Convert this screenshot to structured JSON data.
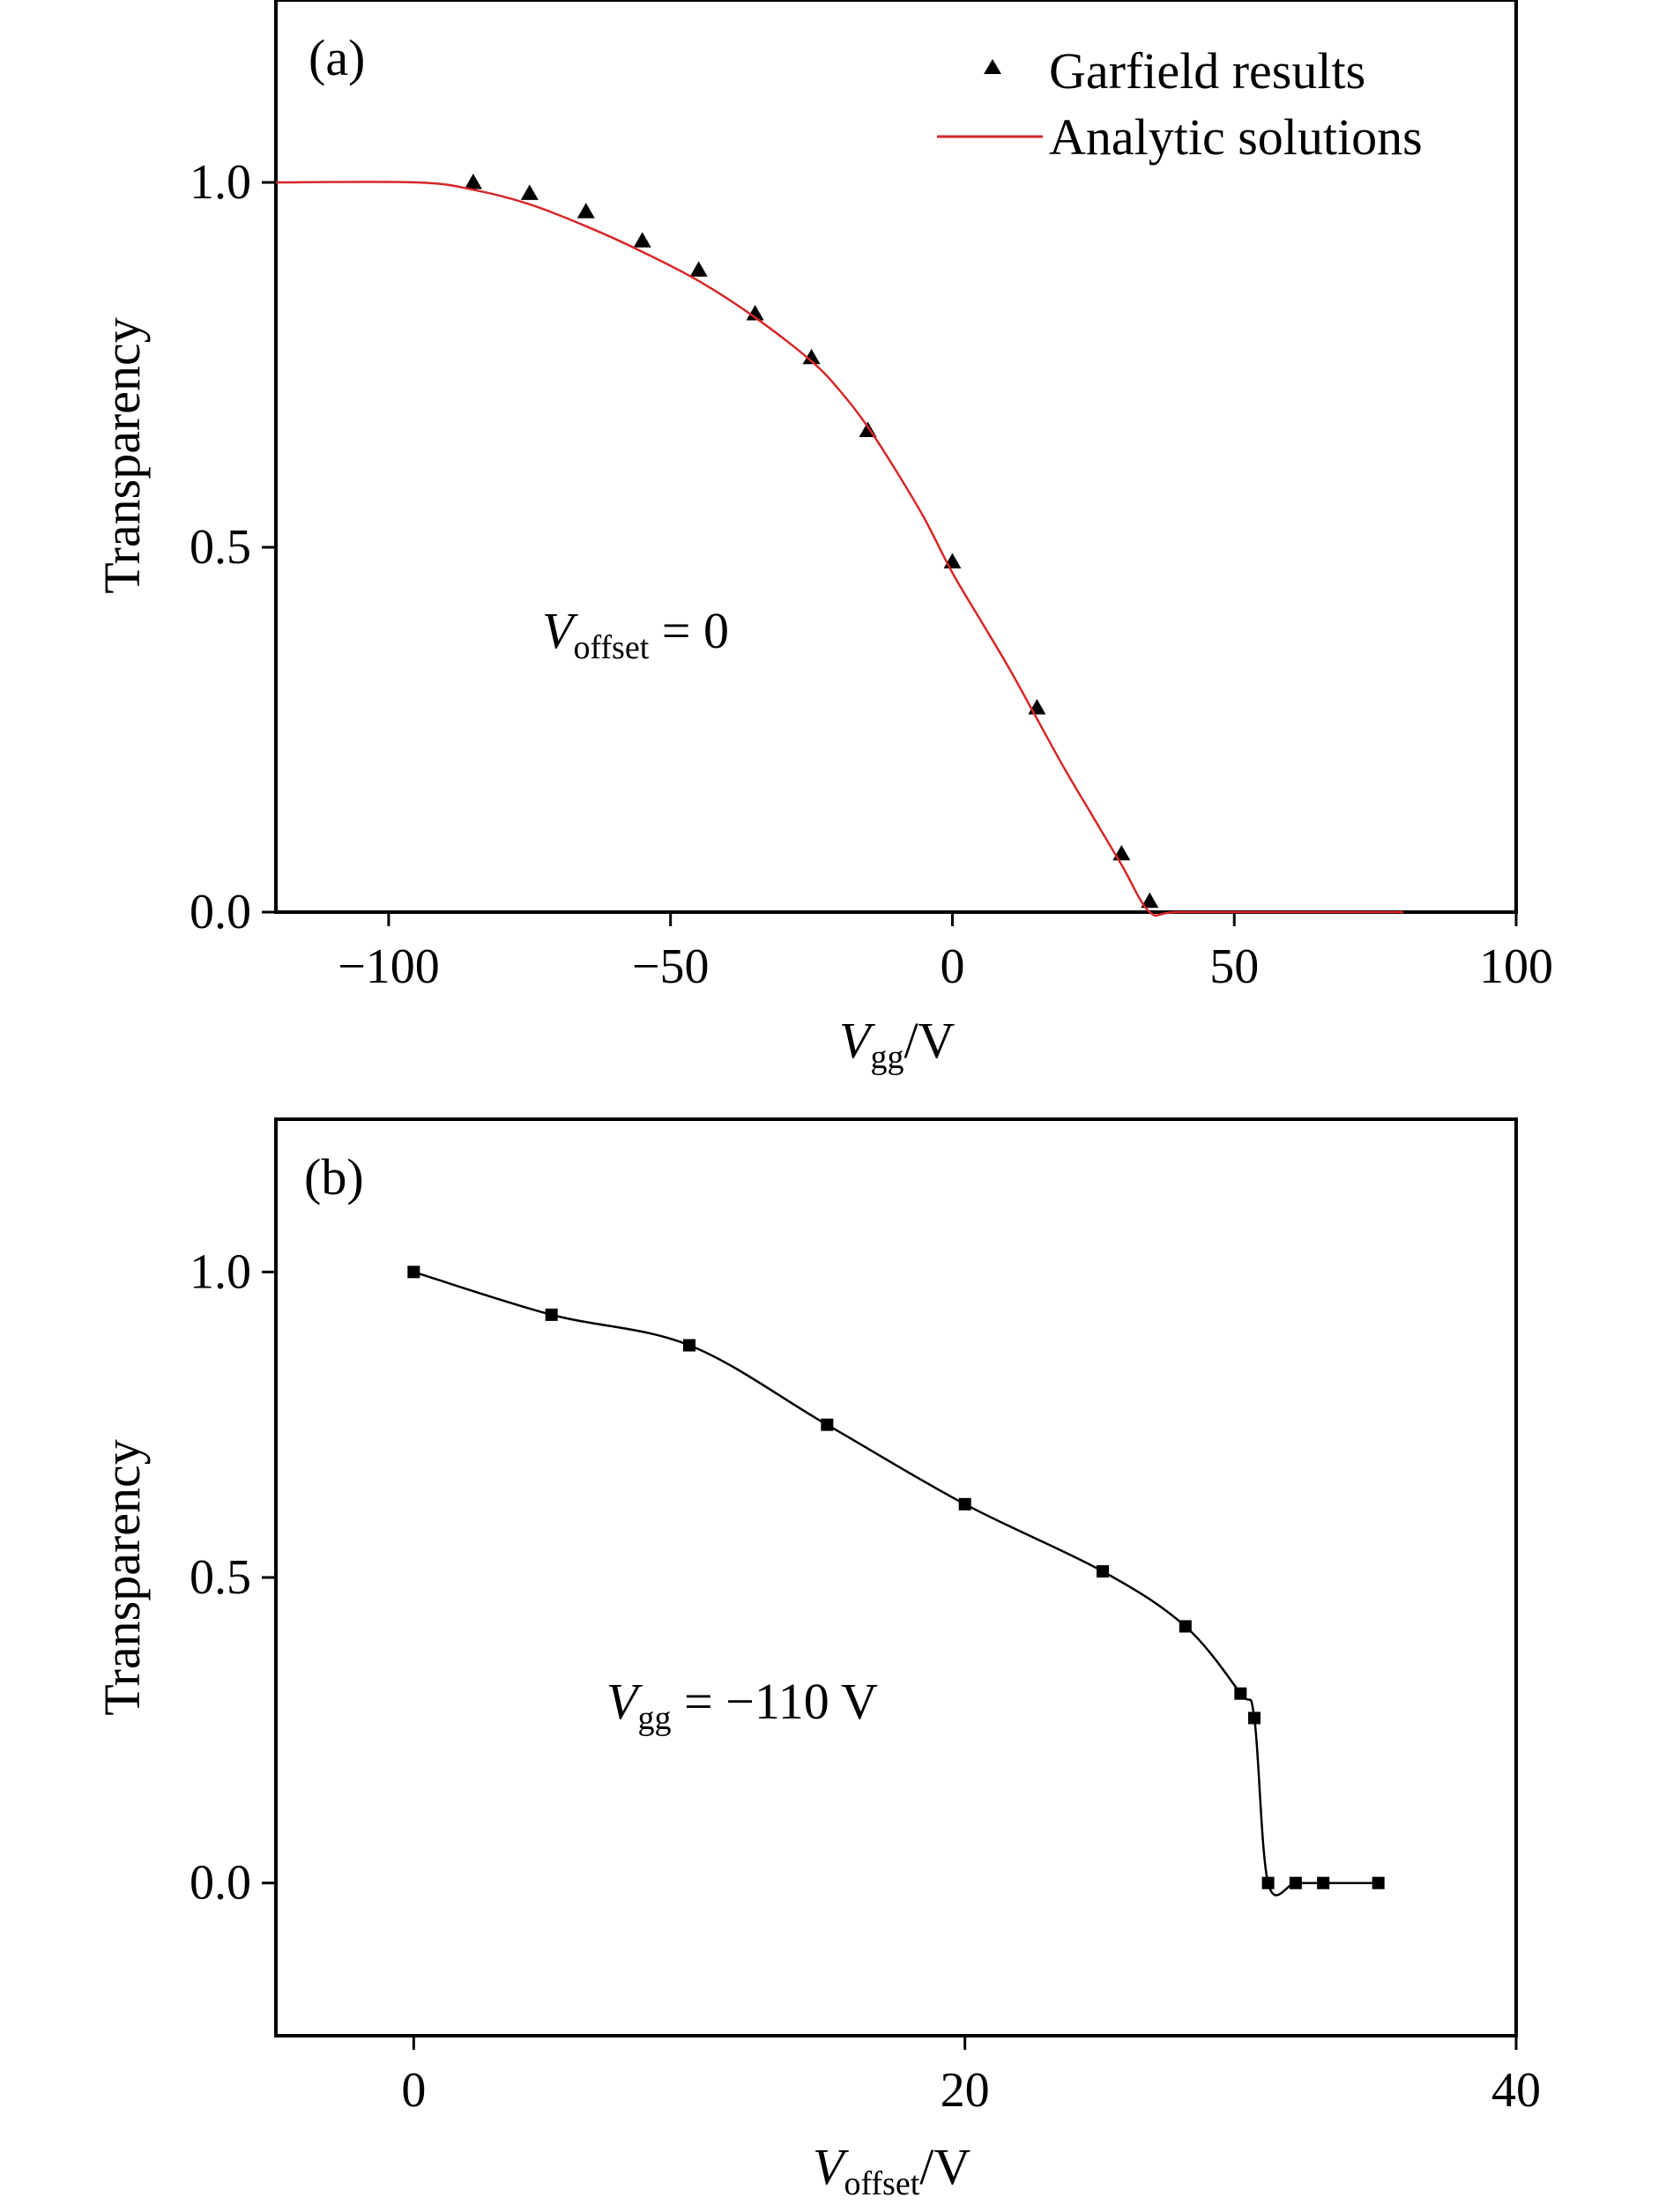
{
  "chart_data": [
    {
      "type": "scatter",
      "panel_label": "(a)",
      "xlabel": {
        "main": "V",
        "sub": "gg",
        "unit": "/V"
      },
      "ylabel": "Transparency",
      "xlim": [
        -120,
        100
      ],
      "ylim": [
        0,
        1.25
      ],
      "xticks": [
        -100,
        -50,
        0,
        50,
        100
      ],
      "yticks": [
        0.0,
        0.5,
        1.0
      ],
      "xtick_labels": [
        "−100",
        "−50",
        "0",
        "50",
        "100"
      ],
      "ytick_labels": [
        "0.0",
        "0.5",
        "1.0"
      ],
      "annotation": {
        "main": "V",
        "sub": "offset",
        "rest": " = 0"
      },
      "legend_position": "top-right",
      "colors": {
        "garfield": "#000000",
        "analytic": "#d62728"
      },
      "series": [
        {
          "name": "Garfield results",
          "kind": "markers",
          "marker": "triangle",
          "x": [
            -85,
            -75,
            -65,
            -55,
            -45,
            -35,
            -25,
            -15,
            0,
            15,
            30,
            35
          ],
          "y": [
            1.0,
            0.985,
            0.96,
            0.92,
            0.88,
            0.82,
            0.76,
            0.66,
            0.48,
            0.28,
            0.08,
            0.015
          ]
        },
        {
          "name": "Analytic solutions",
          "kind": "line",
          "x": [
            -120,
            -95,
            -85,
            -75,
            -65,
            -55,
            -45,
            -35,
            -25,
            -20,
            -15,
            -10,
            -5,
            0,
            5,
            10,
            15,
            20,
            25,
            30,
            35,
            40,
            60,
            80
          ],
          "y": [
            1.0,
            1.0,
            0.99,
            0.97,
            0.94,
            0.905,
            0.865,
            0.815,
            0.755,
            0.715,
            0.665,
            0.605,
            0.54,
            0.465,
            0.4,
            0.335,
            0.265,
            0.195,
            0.13,
            0.065,
            0.0,
            0.0,
            0.0,
            0.0
          ]
        }
      ]
    },
    {
      "type": "line",
      "panel_label": "(b)",
      "xlabel": {
        "main": "V",
        "sub": "offset",
        "unit": "/V"
      },
      "ylabel": "Transparency",
      "xlim": [
        -5,
        40
      ],
      "ylim": [
        -0.25,
        1.25
      ],
      "xticks": [
        0,
        20,
        40
      ],
      "yticks": [
        0.0,
        0.5,
        1.0
      ],
      "xtick_labels": [
        "0",
        "20",
        "40"
      ],
      "ytick_labels": [
        "0.0",
        "0.5",
        "1.0"
      ],
      "annotation": {
        "main": "V",
        "sub": "gg",
        "rest": " = −110 V"
      },
      "colors": {
        "series": "#000000"
      },
      "series": [
        {
          "kind": "line-markers",
          "marker": "square",
          "x": [
            0,
            5,
            10,
            15,
            20,
            25,
            28,
            30,
            30.5,
            31,
            32,
            33,
            35
          ],
          "y": [
            1.0,
            0.93,
            0.88,
            0.75,
            0.62,
            0.51,
            0.42,
            0.31,
            0.27,
            0.0,
            0.0,
            0.0,
            0.0
          ]
        }
      ]
    }
  ]
}
